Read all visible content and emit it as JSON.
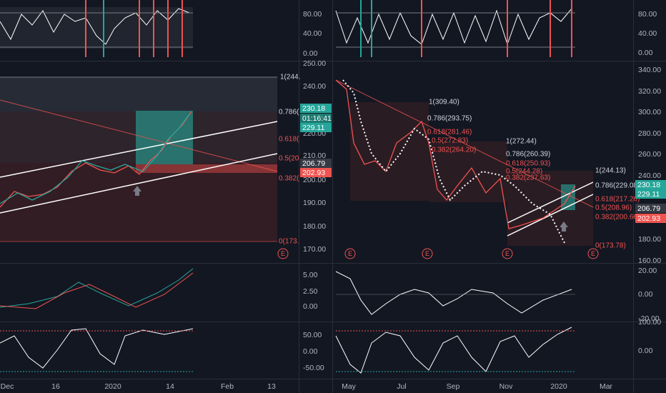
{
  "left": {
    "rsi_axis": [
      "80.00",
      "40.00",
      "0.00"
    ],
    "price_axis": [
      "250.00",
      "240.00",
      "220.00",
      "210.00",
      "200.00",
      "190.00",
      "180.00",
      "170.00"
    ],
    "fib_labels": [
      "1(244.",
      "0.786(",
      "0.618(",
      "0.5(20",
      "0.382(",
      "0(173."
    ],
    "price_tags": [
      "230.18",
      "01:16:41",
      "229.11",
      "206.79",
      "202.93"
    ],
    "macd_axis": [
      "5.00",
      "2.50",
      "0.00"
    ],
    "stoch_axis": [
      "50.00",
      "0.00",
      "-50.00"
    ],
    "x_axis": [
      "Dec",
      "16",
      "2020",
      "14",
      "Feb",
      "13"
    ],
    "event_markers": [
      "E"
    ]
  },
  "right": {
    "rsi_axis": [
      "80.00",
      "40.00",
      "0.00"
    ],
    "price_axis": [
      "340.00",
      "320.00",
      "300.00",
      "280.00",
      "260.00",
      "240.00",
      "180.00",
      "160.00"
    ],
    "fib_labels": [
      "1(309.40)",
      "0.786(293.75)",
      "0.618(281.46)",
      "0.5(272.83)",
      "0.382(264.20)",
      "1(272.44)",
      "0.786(260.39)",
      "0.618(250.93)",
      "0.5(244.28)",
      "0.382(237.63)",
      "1(244.13)",
      "0.786(229.08)",
      "0.618(217.26)",
      "0.5(208.96)",
      "0.382(200.66)",
      "0(173.78)"
    ],
    "price_tags": [
      "230.18",
      "229.11",
      "206.79",
      "202.93"
    ],
    "macd_axis": [
      "20.00",
      "0.00",
      "-20.00"
    ],
    "stoch_axis": [
      "100.00",
      "0.00"
    ],
    "x_axis": [
      "May",
      "Jul",
      "Sep",
      "Nov",
      "2020",
      "Mar"
    ],
    "event_markers": [
      "E",
      "E",
      "E",
      "E"
    ]
  }
}
